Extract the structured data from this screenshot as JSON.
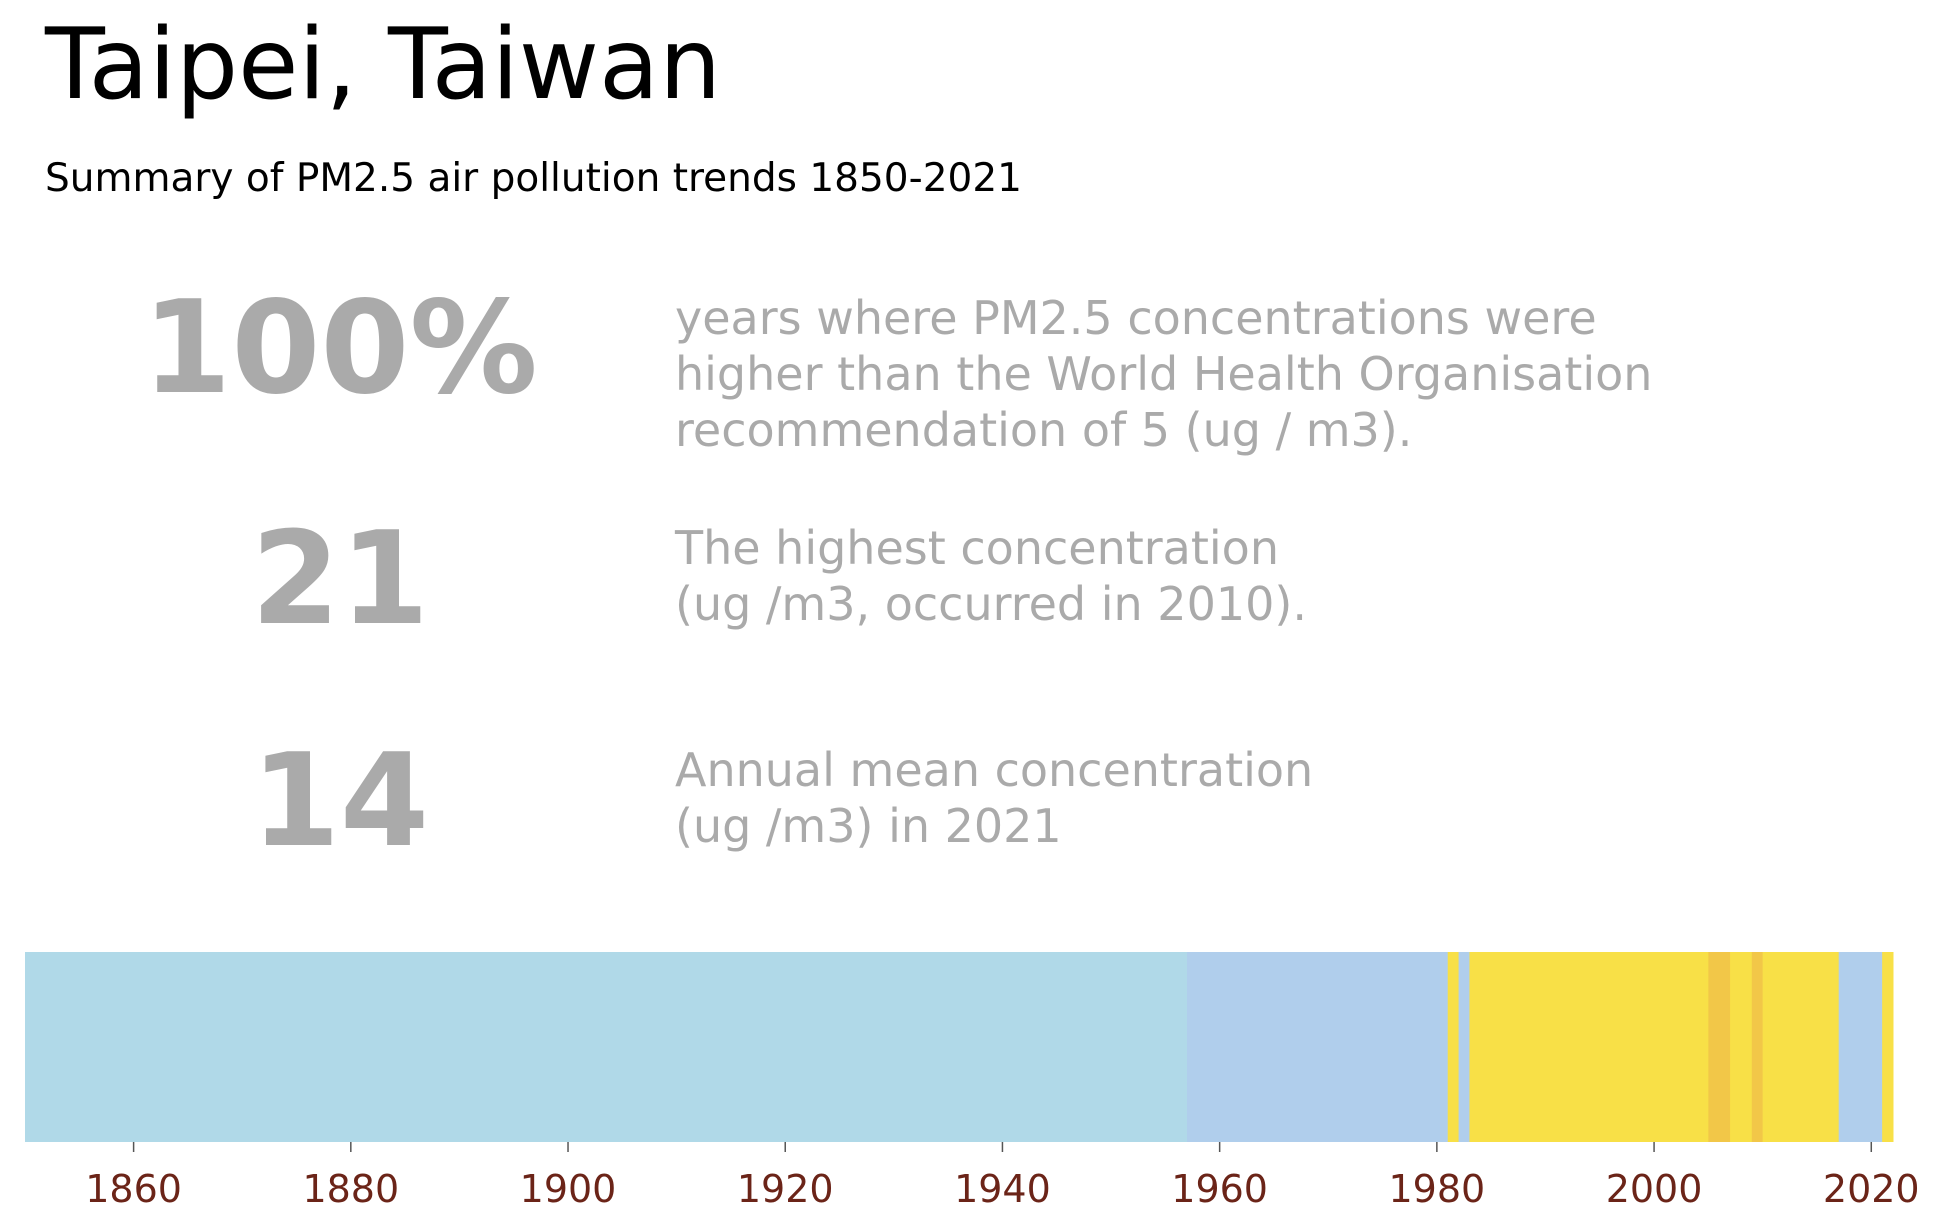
{
  "header": {
    "title": "Taipei, Taiwan",
    "subtitle": "Summary of PM2.5 air pollution trends 1850-2021"
  },
  "stats": [
    {
      "value": "100%",
      "lines": [
        "years where PM2.5 concentrations were",
        "higher than the World Health Organisation",
        "recommendation of 5 (ug / m3)."
      ]
    },
    {
      "value": "21",
      "lines": [
        "The highest concentration",
        "(ug /m3, occurred in 2010)."
      ]
    },
    {
      "value": "14",
      "lines": [
        "Annual mean concentration",
        "(ug /m3) in 2021"
      ]
    }
  ],
  "chart_data": {
    "type": "heatmap",
    "x_label_ticks": [
      "1860",
      "1880",
      "1900",
      "1920",
      "1940",
      "1960",
      "1980",
      "2000",
      "2020"
    ],
    "x_ticks": [
      1860,
      1880,
      1900,
      1920,
      1940,
      1960,
      1980,
      2000,
      2020
    ],
    "xlim": [
      1850,
      2022
    ],
    "colors": {
      "low": "#b0d9e8",
      "mid": "#b0ceec",
      "high": "#f8e047",
      "peak": "#f2c748",
      "tick_label": "#6b2418"
    },
    "segments": [
      {
        "start": 1850,
        "end": 1957,
        "level": "low"
      },
      {
        "start": 1957,
        "end": 1981,
        "level": "mid"
      },
      {
        "start": 1981,
        "end": 1982,
        "level": "high"
      },
      {
        "start": 1982,
        "end": 1983,
        "level": "mid"
      },
      {
        "start": 1983,
        "end": 2005,
        "level": "high"
      },
      {
        "start": 2005,
        "end": 2007,
        "level": "peak"
      },
      {
        "start": 2007,
        "end": 2009,
        "level": "high"
      },
      {
        "start": 2009,
        "end": 2010,
        "level": "peak"
      },
      {
        "start": 2010,
        "end": 2017,
        "level": "high"
      },
      {
        "start": 2017,
        "end": 2021,
        "level": "mid"
      },
      {
        "start": 2021,
        "end": 2022,
        "level": "high"
      }
    ]
  }
}
